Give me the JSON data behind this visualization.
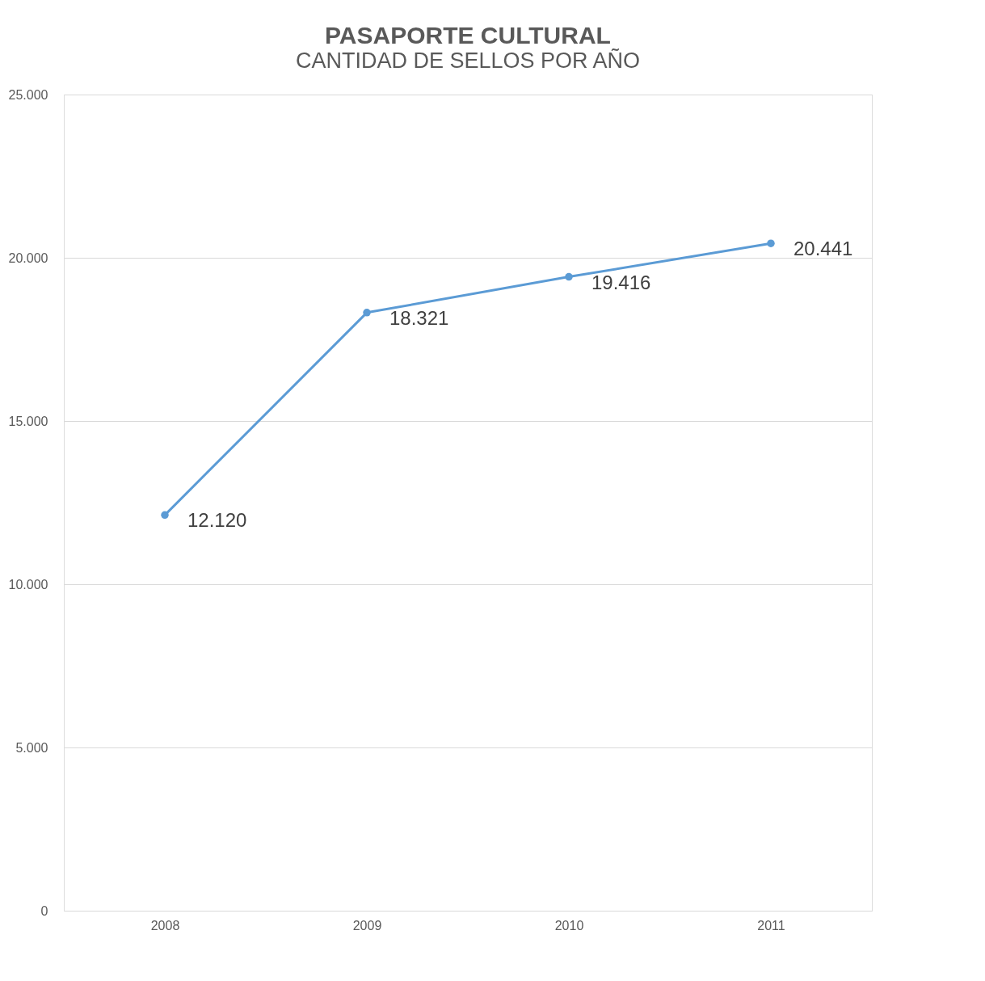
{
  "chart_data": {
    "type": "line",
    "title": "PASAPORTE CULTURAL",
    "subtitle": "CANTIDAD DE SELLOS POR  AÑO",
    "categories": [
      "2008",
      "2009",
      "2010",
      "2011"
    ],
    "series": [
      {
        "color": "#5b9bd5",
        "values": [
          12120,
          18321,
          19416,
          20441
        ],
        "value_labels": [
          "12.120",
          "18.321",
          "19.416",
          "20.441"
        ]
      }
    ],
    "ylim": [
      0,
      25000
    ],
    "yticks": [
      0,
      {
        "value": 5000,
        "label": "5.000"
      },
      {
        "value": 10000,
        "label": "10.000"
      },
      {
        "value": 15000,
        "label": "15.000"
      },
      {
        "value": 20000,
        "label": "20.000"
      },
      {
        "value": 25000,
        "label": "25.000"
      }
    ],
    "grid": "y",
    "marker": "circle",
    "line_style": "solid"
  }
}
